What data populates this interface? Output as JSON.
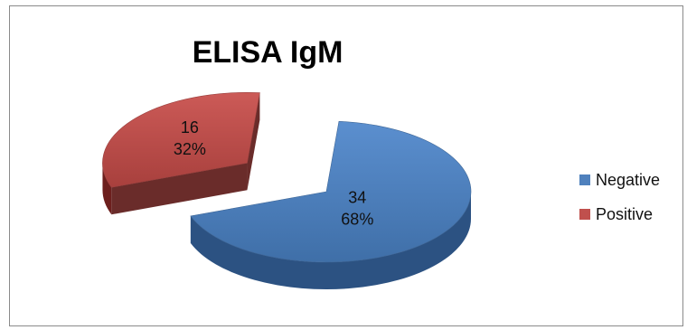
{
  "chart_data": {
    "type": "pie",
    "title": "ELISA IgM",
    "categories": [
      "Negative",
      "Positive"
    ],
    "values": [
      34,
      16
    ],
    "percent_labels": [
      "68%",
      "32%"
    ],
    "colors": [
      "#4f81bd",
      "#c0504d"
    ],
    "exploded": [
      "Positive"
    ],
    "legend": "right",
    "three_d": true
  }
}
